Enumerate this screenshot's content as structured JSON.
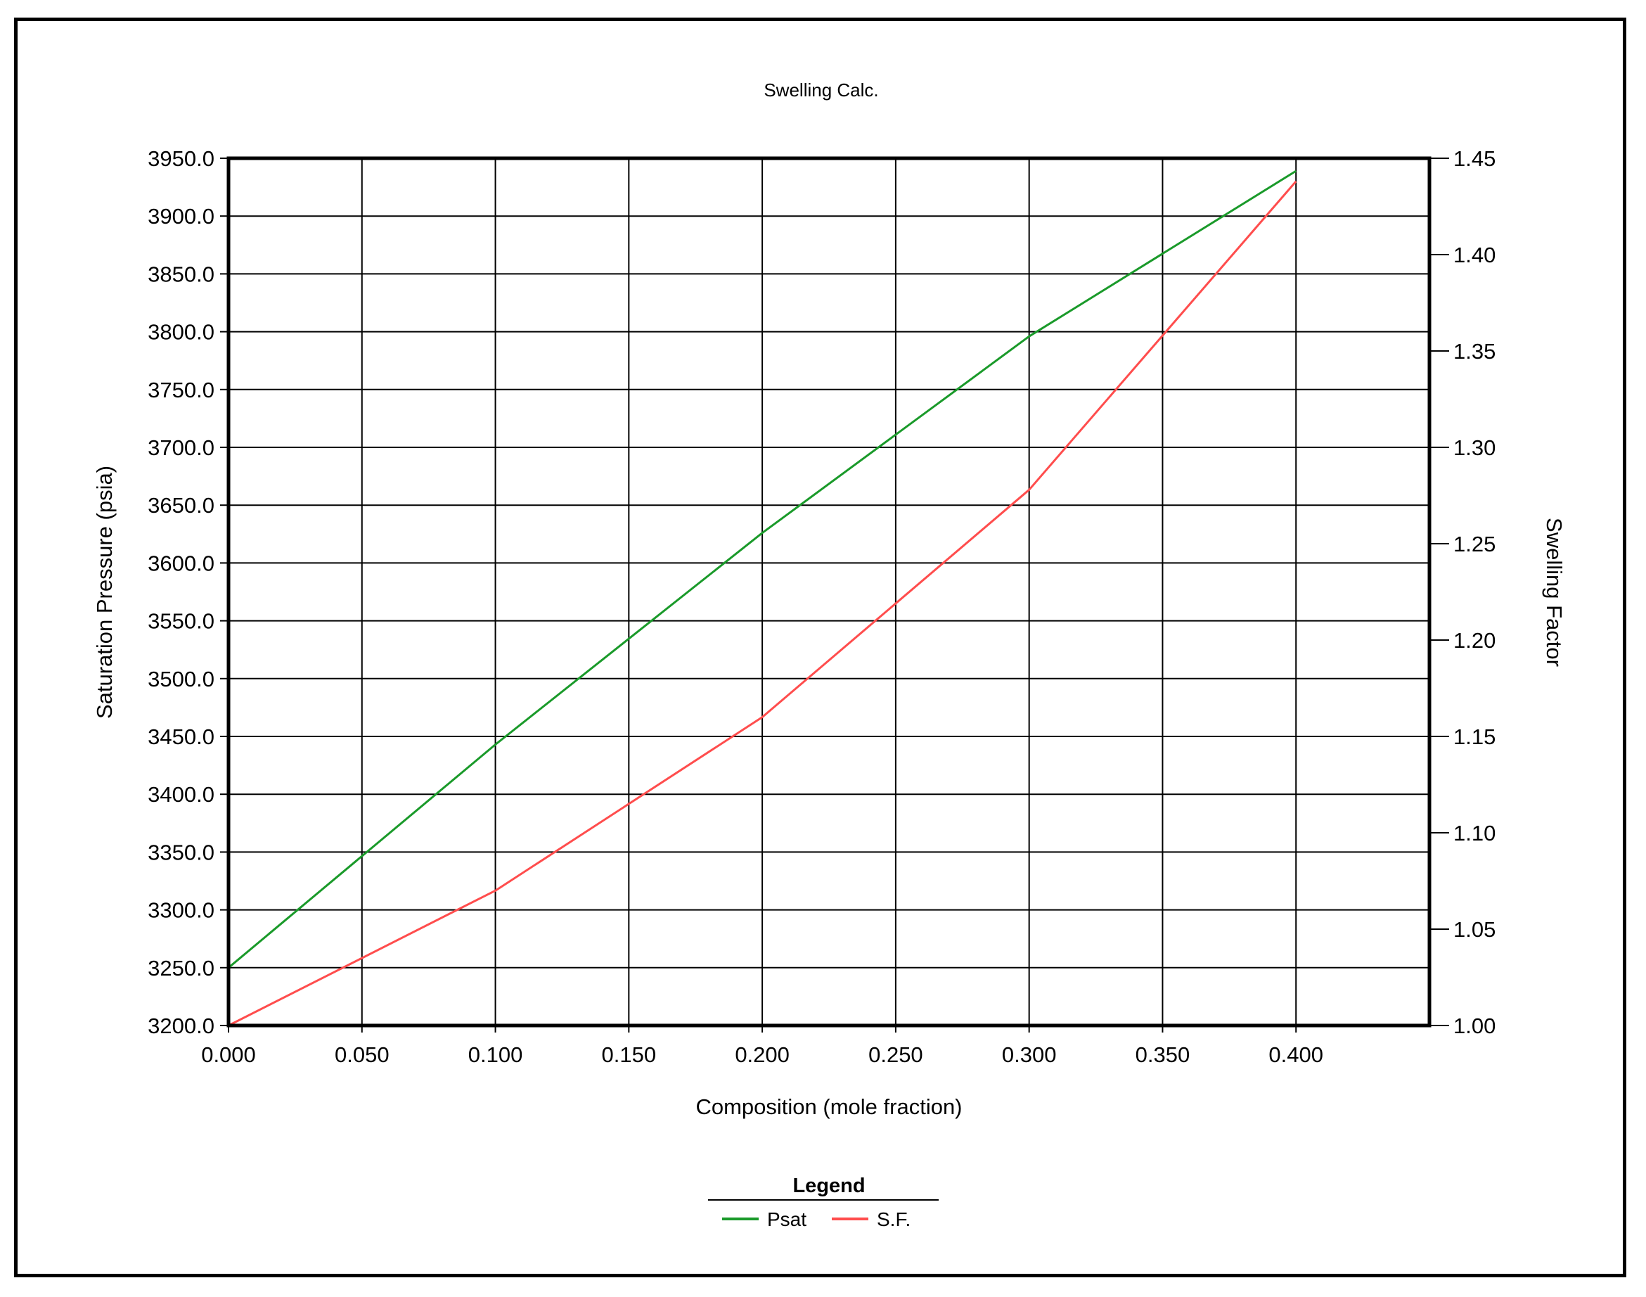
{
  "chart_data": {
    "type": "line",
    "title": "Swelling Calc.",
    "xlabel": "Composition (mole fraction)",
    "ylabel": "Saturation Pressure (psia)",
    "y2label": "Swelling Factor",
    "xlim": [
      0.0,
      0.45
    ],
    "ylim": [
      3200.0,
      3950.0
    ],
    "y2lim": [
      1.0,
      1.45
    ],
    "grid": true,
    "legend_title": "Legend",
    "legend_position": "bottom-center",
    "x_ticks": [
      "0.000",
      "0.050",
      "0.100",
      "0.150",
      "0.200",
      "0.250",
      "0.300",
      "0.350",
      "0.400"
    ],
    "y_ticks": [
      "3200.0",
      "3250.0",
      "3300.0",
      "3350.0",
      "3400.0",
      "3450.0",
      "3500.0",
      "3550.0",
      "3600.0",
      "3650.0",
      "3700.0",
      "3750.0",
      "3800.0",
      "3850.0",
      "3900.0",
      "3950.0"
    ],
    "y2_ticks": [
      "1.00",
      "1.05",
      "1.10",
      "1.15",
      "1.20",
      "1.25",
      "1.30",
      "1.35",
      "1.40",
      "1.45"
    ],
    "series": [
      {
        "name": "Psat",
        "axis": "left",
        "color": "#1a9a2a",
        "x": [
          0.0,
          0.1,
          0.2,
          0.3,
          0.4
        ],
        "y": [
          3250,
          3443,
          3626,
          3796,
          3939
        ]
      },
      {
        "name": "S.F.",
        "axis": "right",
        "color": "#ff4d4d",
        "x": [
          0.0,
          0.1,
          0.2,
          0.3,
          0.4
        ],
        "y": [
          1.0,
          1.07,
          1.16,
          1.278,
          1.438
        ]
      }
    ]
  }
}
